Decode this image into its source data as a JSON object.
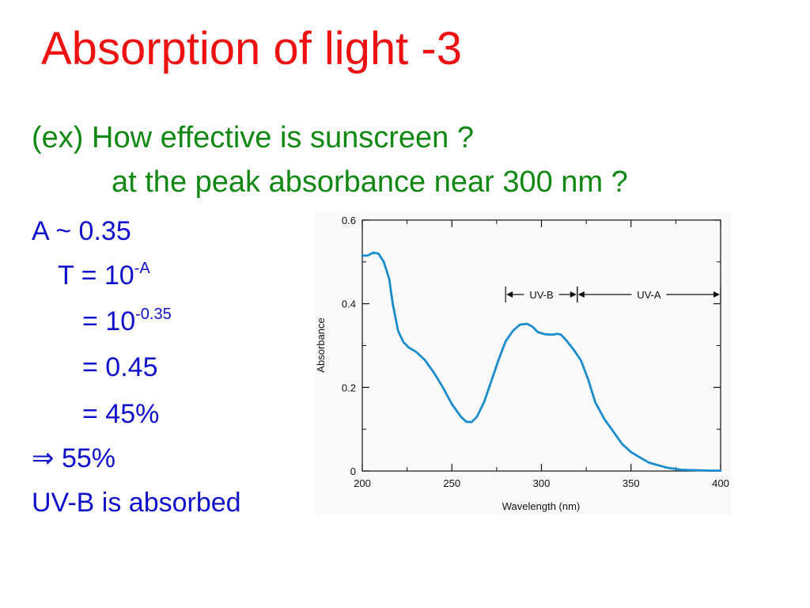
{
  "slide": {
    "title": "Absorption of light -3",
    "question_line1": "(ex) How effective is sunscreen ?",
    "question_line2": "at the peak absorbance near 300 nm ?",
    "calc": {
      "absorbance": "A ~ 0.35",
      "t_base": "T = 10",
      "t_exp": "-A",
      "eq1_base": "= 10",
      "eq1_exp": "-0.35",
      "eq2": "= 0.45",
      "eq3": "= 45%",
      "implies_symbol": "⇒",
      "implies_value": "55%",
      "conclusion": "UV-B is absorbed"
    },
    "colors": {
      "title": "#ee1111",
      "question": "#118811",
      "calc": "#1111cc",
      "curve": "#1a8ccc"
    }
  },
  "chart_data": {
    "type": "line",
    "xlabel": "Wavelength (nm)",
    "ylabel": "Absorbance",
    "xlim": [
      200,
      400
    ],
    "ylim": [
      0,
      0.6
    ],
    "xticks": [
      "200",
      "250",
      "300",
      "350",
      "400"
    ],
    "yticks": [
      "0",
      "0.2",
      "0.4",
      "0.6"
    ],
    "annotations": [
      {
        "label": "UV-B",
        "x_from": 280,
        "x_to": 320
      },
      {
        "label": "UV-A",
        "x_from": 320,
        "x_to": 400
      }
    ],
    "series": [
      {
        "x": [
          200,
          203,
          206,
          209,
          212,
          215,
          217,
          220,
          223,
          226,
          230,
          235,
          240,
          245,
          250,
          255,
          258,
          261,
          264,
          268,
          272,
          276,
          280,
          284,
          288,
          292,
          295,
          298,
          302,
          306,
          309,
          311,
          314,
          318,
          322,
          326,
          330,
          335,
          340,
          345,
          350,
          360,
          370,
          378,
          385,
          395,
          400
        ],
        "y": [
          0.515,
          0.515,
          0.522,
          0.52,
          0.5,
          0.46,
          0.4,
          0.335,
          0.308,
          0.295,
          0.285,
          0.265,
          0.235,
          0.2,
          0.16,
          0.13,
          0.118,
          0.117,
          0.13,
          0.165,
          0.215,
          0.265,
          0.31,
          0.335,
          0.35,
          0.352,
          0.345,
          0.332,
          0.327,
          0.326,
          0.328,
          0.326,
          0.312,
          0.29,
          0.265,
          0.22,
          0.165,
          0.125,
          0.095,
          0.065,
          0.045,
          0.02,
          0.008,
          0.003,
          0.002,
          0.001,
          0.001
        ]
      }
    ]
  }
}
